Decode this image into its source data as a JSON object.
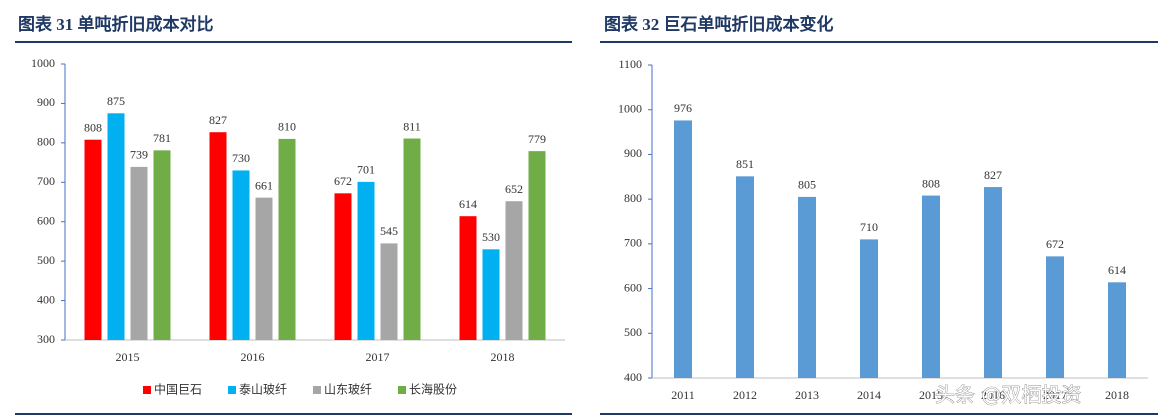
{
  "chart_data": [
    {
      "type": "bar",
      "title": "图表 31 单吨折旧成本对比",
      "categories": [
        "2015",
        "2016",
        "2017",
        "2018"
      ],
      "series": [
        {
          "name": "中国巨石",
          "color": "#ff0000",
          "values": [
            808,
            827,
            672,
            614
          ]
        },
        {
          "name": "泰山玻纤",
          "color": "#00b0f0",
          "values": [
            875,
            730,
            701,
            530
          ]
        },
        {
          "name": "山东玻纤",
          "color": "#a6a6a6",
          "values": [
            739,
            661,
            545,
            652
          ]
        },
        {
          "name": "长海股份",
          "color": "#70ad47",
          "values": [
            781,
            810,
            811,
            779
          ]
        }
      ],
      "ylim": [
        300,
        1000
      ],
      "yticks": [
        300,
        400,
        500,
        600,
        700,
        800,
        900,
        1000
      ],
      "legend": "bottom",
      "grid": false
    },
    {
      "type": "bar",
      "title": "图表 32 巨石单吨折旧成本变化",
      "categories": [
        "2011",
        "2012",
        "2013",
        "2014",
        "2015",
        "2016",
        "2017",
        "2018"
      ],
      "values": [
        976,
        851,
        805,
        710,
        808,
        827,
        672,
        614
      ],
      "color": "#5b9bd5",
      "ylim": [
        400,
        1100
      ],
      "yticks": [
        400,
        500,
        600,
        700,
        800,
        900,
        1000,
        1100
      ],
      "grid": false
    }
  ],
  "watermark": "头条 @双栖投资"
}
